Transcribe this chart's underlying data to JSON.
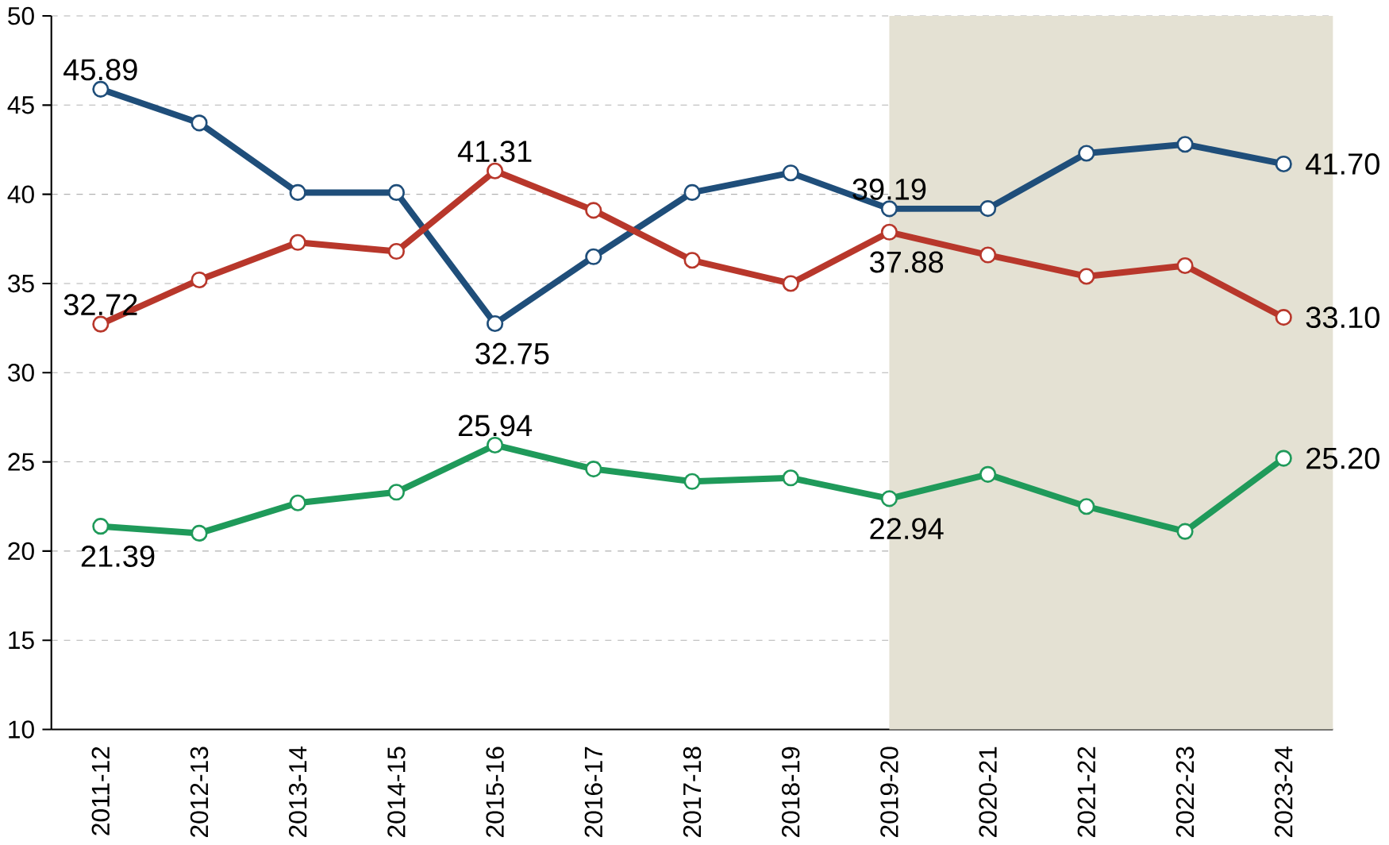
{
  "chart_data": {
    "type": "line",
    "categories": [
      "2011-12",
      "2012-13",
      "2013-14",
      "2014-15",
      "2015-16",
      "2016-17",
      "2017-18",
      "2018-19",
      "2019-20",
      "2020-21",
      "2021-22",
      "2022-23",
      "2023-24"
    ],
    "series": [
      {
        "color": "#1f4e7a",
        "values": [
          45.89,
          44.0,
          40.1,
          40.1,
          32.75,
          36.5,
          40.1,
          41.2,
          39.19,
          39.2,
          42.3,
          42.8,
          41.7
        ],
        "value_labels": [
          "45.89",
          null,
          null,
          null,
          "32.75",
          null,
          null,
          null,
          "39.19",
          null,
          null,
          null,
          "41.70"
        ]
      },
      {
        "color": "#b8372b",
        "values": [
          32.72,
          35.2,
          37.3,
          36.8,
          41.31,
          39.1,
          36.3,
          35.0,
          37.88,
          36.6,
          35.4,
          36.0,
          33.1
        ],
        "value_labels": [
          "32.72",
          null,
          null,
          null,
          "41.31",
          null,
          null,
          null,
          "37.88",
          null,
          null,
          null,
          "33.10"
        ]
      },
      {
        "color": "#1f9a5a",
        "values": [
          21.39,
          21.0,
          22.7,
          23.3,
          25.94,
          24.6,
          23.9,
          24.1,
          22.94,
          24.3,
          22.5,
          21.1,
          25.2
        ],
        "value_labels": [
          "21.39",
          null,
          null,
          null,
          "25.94",
          null,
          null,
          null,
          "22.94",
          null,
          null,
          null,
          "25.20"
        ]
      }
    ],
    "ylim": [
      10,
      50
    ],
    "yticks": [
      10,
      15,
      20,
      25,
      30,
      35,
      40,
      45,
      50
    ],
    "grid": "y",
    "marker": "circle",
    "line_style": "solid",
    "bands": [
      {
        "axis": "x",
        "from": "2019-20",
        "to": "2023-24",
        "color": "#e4e1d3"
      }
    ]
  }
}
